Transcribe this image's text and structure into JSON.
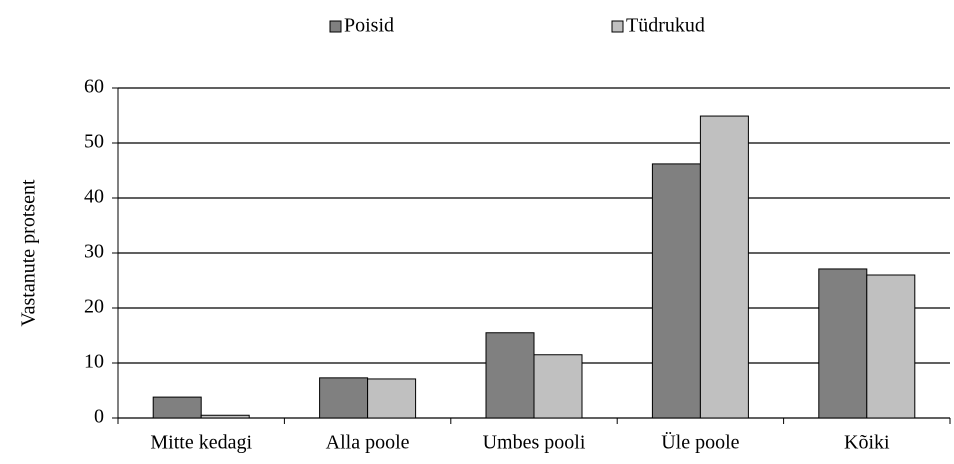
{
  "chart_data": {
    "type": "bar",
    "y_label": "Vastanute  protsent",
    "categories": [
      "Mitte kedagi",
      "Alla poole",
      "Umbes pooli",
      "Üle poole",
      "Kõiki"
    ],
    "series": [
      {
        "name": "Poisid",
        "color": "#808080",
        "values": [
          3.8,
          7.3,
          15.5,
          46.2,
          27.1
        ]
      },
      {
        "name": "Tüdrukud",
        "color": "#c0c0c0",
        "values": [
          0.5,
          7.1,
          11.5,
          54.9,
          26
        ]
      }
    ],
    "ylim": [
      0,
      60
    ],
    "yticks": [
      0,
      10,
      20,
      30,
      40,
      50,
      60
    ],
    "grid": true,
    "legend": "top"
  }
}
